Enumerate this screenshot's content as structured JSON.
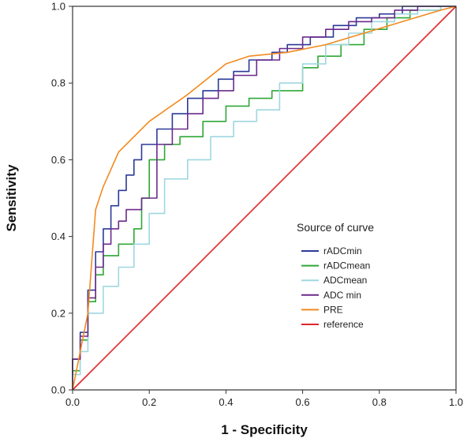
{
  "chart_data": {
    "type": "line",
    "xlabel": "1 - Specificity",
    "ylabel": "Sensitivity",
    "xlim": [
      0,
      1
    ],
    "ylim": [
      0,
      1
    ],
    "xticks": [
      "0.0",
      "0.2",
      "0.4",
      "0.6",
      "0.8",
      "1.0"
    ],
    "yticks": [
      "0.0",
      "0.2",
      "0.4",
      "0.6",
      "0.8",
      "1.0"
    ],
    "grid": false,
    "legend": {
      "title": "Source of curve",
      "placement": "center-right"
    },
    "series": [
      {
        "name": "rADCmin",
        "color": "#2b3a98",
        "x": [
          0,
          0,
          0.02,
          0.02,
          0.04,
          0.04,
          0.06,
          0.06,
          0.08,
          0.08,
          0.1,
          0.1,
          0.12,
          0.12,
          0.14,
          0.14,
          0.16,
          0.16,
          0.18,
          0.18,
          0.22,
          0.22,
          0.26,
          0.26,
          0.3,
          0.3,
          0.34,
          0.34,
          0.38,
          0.38,
          0.42,
          0.42,
          0.46,
          0.46,
          0.52,
          0.52,
          0.56,
          0.56,
          0.62,
          0.62,
          0.68,
          0.68,
          0.74,
          0.74,
          0.8,
          0.8,
          0.86,
          0.86,
          0.96,
          0.96,
          1
        ],
        "y": [
          0,
          0.08,
          0.08,
          0.15,
          0.15,
          0.26,
          0.26,
          0.36,
          0.36,
          0.42,
          0.42,
          0.48,
          0.48,
          0.52,
          0.52,
          0.56,
          0.56,
          0.6,
          0.6,
          0.64,
          0.64,
          0.68,
          0.68,
          0.72,
          0.72,
          0.76,
          0.76,
          0.78,
          0.78,
          0.81,
          0.81,
          0.83,
          0.83,
          0.86,
          0.86,
          0.88,
          0.88,
          0.9,
          0.9,
          0.92,
          0.92,
          0.95,
          0.95,
          0.97,
          0.97,
          0.98,
          0.98,
          1.0,
          1.0,
          1.0,
          1
        ]
      },
      {
        "name": "rADCmean",
        "color": "#2fa836",
        "x": [
          0,
          0,
          0.02,
          0.02,
          0.04,
          0.04,
          0.06,
          0.06,
          0.08,
          0.08,
          0.12,
          0.12,
          0.16,
          0.16,
          0.18,
          0.18,
          0.2,
          0.2,
          0.24,
          0.24,
          0.28,
          0.28,
          0.34,
          0.34,
          0.4,
          0.4,
          0.46,
          0.46,
          0.52,
          0.52,
          0.6,
          0.6,
          0.64,
          0.64,
          0.7,
          0.7,
          0.76,
          0.76,
          0.82,
          0.82,
          0.88,
          0.88,
          0.96,
          0.96,
          1
        ],
        "y": [
          0,
          0.05,
          0.05,
          0.13,
          0.13,
          0.23,
          0.23,
          0.3,
          0.3,
          0.35,
          0.35,
          0.38,
          0.38,
          0.42,
          0.42,
          0.5,
          0.5,
          0.6,
          0.6,
          0.64,
          0.64,
          0.66,
          0.66,
          0.7,
          0.7,
          0.74,
          0.74,
          0.76,
          0.76,
          0.78,
          0.78,
          0.84,
          0.84,
          0.87,
          0.87,
          0.9,
          0.9,
          0.94,
          0.94,
          0.97,
          0.97,
          0.99,
          0.99,
          1.0,
          1
        ]
      },
      {
        "name": "ADCmean",
        "color": "#9fd7e0",
        "x": [
          0,
          0,
          0.02,
          0.02,
          0.04,
          0.04,
          0.08,
          0.08,
          0.12,
          0.12,
          0.16,
          0.16,
          0.2,
          0.2,
          0.24,
          0.24,
          0.3,
          0.3,
          0.36,
          0.36,
          0.42,
          0.42,
          0.48,
          0.48,
          0.54,
          0.54,
          0.6,
          0.6,
          0.66,
          0.66,
          0.72,
          0.72,
          0.78,
          0.78,
          0.84,
          0.84,
          0.9,
          0.9,
          0.96,
          0.96,
          1
        ],
        "y": [
          0,
          0.04,
          0.04,
          0.1,
          0.1,
          0.2,
          0.2,
          0.27,
          0.27,
          0.32,
          0.32,
          0.38,
          0.38,
          0.46,
          0.46,
          0.55,
          0.55,
          0.6,
          0.6,
          0.66,
          0.66,
          0.7,
          0.7,
          0.73,
          0.73,
          0.8,
          0.8,
          0.85,
          0.85,
          0.9,
          0.9,
          0.93,
          0.93,
          0.96,
          0.96,
          0.98,
          0.98,
          0.99,
          0.99,
          1.0,
          1
        ]
      },
      {
        "name": "ADC min",
        "color": "#6b2a8c",
        "x": [
          0,
          0,
          0.02,
          0.02,
          0.04,
          0.04,
          0.06,
          0.06,
          0.08,
          0.08,
          0.1,
          0.1,
          0.12,
          0.12,
          0.14,
          0.14,
          0.18,
          0.18,
          0.22,
          0.22,
          0.26,
          0.26,
          0.3,
          0.3,
          0.34,
          0.34,
          0.38,
          0.38,
          0.42,
          0.42,
          0.48,
          0.48,
          0.54,
          0.54,
          0.6,
          0.6,
          0.66,
          0.66,
          0.72,
          0.72,
          0.78,
          0.78,
          0.84,
          0.84,
          0.9,
          0.9,
          0.96,
          0.96,
          1
        ],
        "y": [
          0,
          0.08,
          0.08,
          0.14,
          0.14,
          0.24,
          0.24,
          0.32,
          0.32,
          0.38,
          0.38,
          0.42,
          0.42,
          0.44,
          0.44,
          0.47,
          0.47,
          0.5,
          0.5,
          0.64,
          0.64,
          0.68,
          0.68,
          0.72,
          0.72,
          0.76,
          0.76,
          0.78,
          0.78,
          0.82,
          0.82,
          0.86,
          0.86,
          0.89,
          0.89,
          0.92,
          0.92,
          0.94,
          0.94,
          0.96,
          0.96,
          0.97,
          0.97,
          0.99,
          0.99,
          1.0,
          1.0,
          1.0,
          1
        ]
      },
      {
        "name": "PRE",
        "color": "#f28a1e",
        "x": [
          0,
          0.04,
          0.06,
          0.08,
          0.12,
          0.2,
          0.3,
          0.4,
          0.46,
          0.56,
          0.66,
          0.76,
          0.86,
          0.96,
          1
        ],
        "y": [
          0,
          0.2,
          0.47,
          0.53,
          0.62,
          0.7,
          0.77,
          0.85,
          0.87,
          0.88,
          0.9,
          0.93,
          0.96,
          0.99,
          1
        ]
      },
      {
        "name": "reference",
        "color": "#e0262a",
        "x": [
          0,
          1
        ],
        "y": [
          0,
          1
        ]
      }
    ]
  }
}
